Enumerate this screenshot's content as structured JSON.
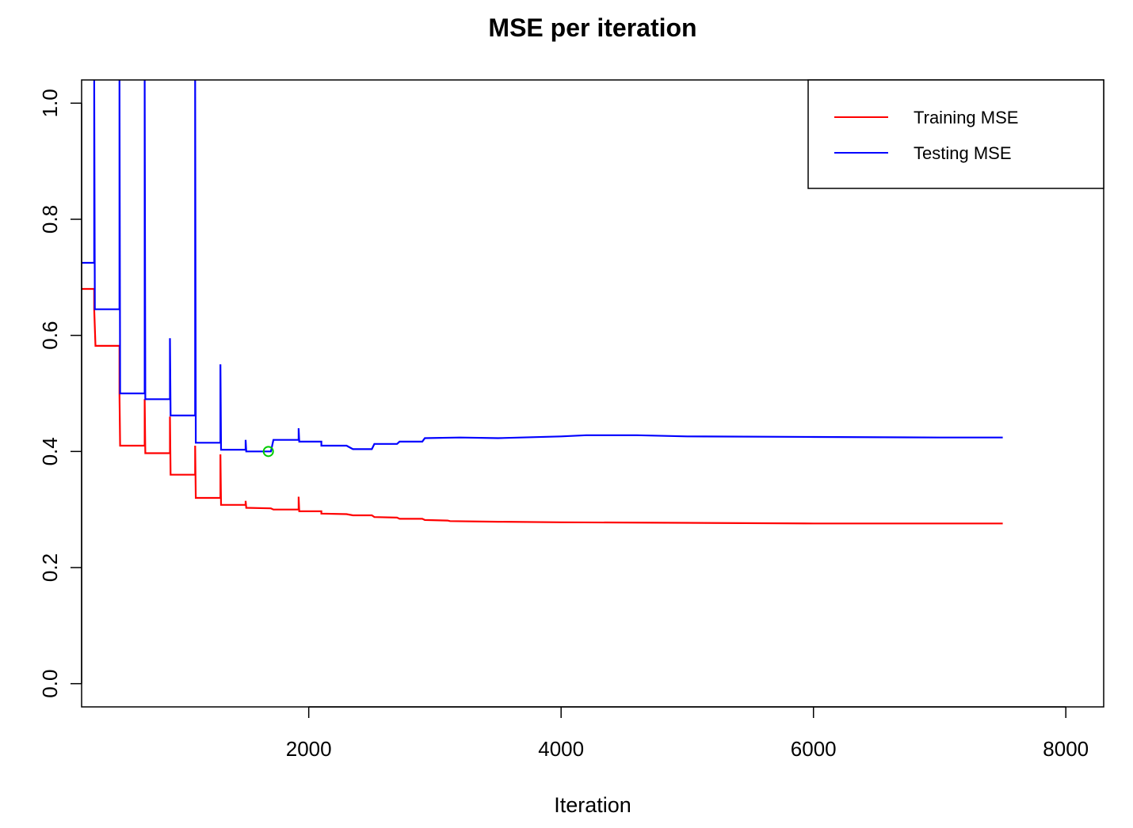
{
  "chart_data": {
    "type": "line",
    "title": "MSE per iteration",
    "xlabel": "Iteration",
    "ylabel": "",
    "xlim": [
      200,
      8300
    ],
    "ylim": [
      -0.04,
      1.04
    ],
    "x_ticks": [
      2000,
      4000,
      6000,
      8000
    ],
    "y_ticks": [
      0.0,
      0.2,
      0.4,
      0.6,
      0.8,
      1.0
    ],
    "x_tick_labels": [
      "2000",
      "4000",
      "6000",
      "8000"
    ],
    "y_tick_labels": [
      "0.0",
      "0.2",
      "0.4",
      "0.6",
      "0.8",
      "1.0"
    ],
    "grid": false,
    "legend_position": "top-right",
    "legend": [
      "Training MSE",
      "Testing MSE"
    ],
    "series": [
      {
        "name": "Training MSE",
        "color": "#ff0000",
        "points": [
          [
            200,
            0.68
          ],
          [
            300,
            0.68
          ],
          [
            300,
            0.645
          ],
          [
            310,
            0.582
          ],
          [
            500,
            0.582
          ],
          [
            500,
            0.5
          ],
          [
            505,
            0.41
          ],
          [
            700,
            0.41
          ],
          [
            700,
            0.49
          ],
          [
            705,
            0.397
          ],
          [
            900,
            0.397
          ],
          [
            900,
            0.46
          ],
          [
            905,
            0.36
          ],
          [
            1100,
            0.36
          ],
          [
            1100,
            0.41
          ],
          [
            1105,
            0.32
          ],
          [
            1300,
            0.32
          ],
          [
            1300,
            0.395
          ],
          [
            1305,
            0.308
          ],
          [
            1500,
            0.308
          ],
          [
            1500,
            0.315
          ],
          [
            1505,
            0.303
          ],
          [
            1700,
            0.302
          ],
          [
            1720,
            0.3
          ],
          [
            1920,
            0.3
          ],
          [
            1920,
            0.322
          ],
          [
            1925,
            0.297
          ],
          [
            2100,
            0.297
          ],
          [
            2100,
            0.293
          ],
          [
            2300,
            0.292
          ],
          [
            2350,
            0.29
          ],
          [
            2500,
            0.29
          ],
          [
            2520,
            0.287
          ],
          [
            2700,
            0.286
          ],
          [
            2720,
            0.284
          ],
          [
            2900,
            0.284
          ],
          [
            2920,
            0.282
          ],
          [
            3100,
            0.281
          ],
          [
            3120,
            0.28
          ],
          [
            3500,
            0.279
          ],
          [
            4000,
            0.278
          ],
          [
            5000,
            0.277
          ],
          [
            6000,
            0.276
          ],
          [
            7000,
            0.276
          ],
          [
            7500,
            0.276
          ]
        ]
      },
      {
        "name": "Testing MSE",
        "color": "#0000ff",
        "points": [
          [
            200,
            0.725
          ],
          [
            300,
            0.725
          ],
          [
            300,
            1.04
          ],
          [
            305,
            0.645
          ],
          [
            500,
            0.645
          ],
          [
            500,
            1.04
          ],
          [
            505,
            0.5
          ],
          [
            700,
            0.5
          ],
          [
            700,
            1.04
          ],
          [
            705,
            0.49
          ],
          [
            900,
            0.49
          ],
          [
            900,
            0.595
          ],
          [
            905,
            0.462
          ],
          [
            1100,
            0.462
          ],
          [
            1100,
            1.04
          ],
          [
            1105,
            0.415
          ],
          [
            1300,
            0.415
          ],
          [
            1300,
            0.55
          ],
          [
            1305,
            0.403
          ],
          [
            1500,
            0.403
          ],
          [
            1500,
            0.42
          ],
          [
            1505,
            0.4
          ],
          [
            1700,
            0.4
          ],
          [
            1720,
            0.42
          ],
          [
            1920,
            0.42
          ],
          [
            1920,
            0.44
          ],
          [
            1925,
            0.417
          ],
          [
            2100,
            0.417
          ],
          [
            2100,
            0.41
          ],
          [
            2300,
            0.41
          ],
          [
            2350,
            0.404
          ],
          [
            2500,
            0.404
          ],
          [
            2520,
            0.413
          ],
          [
            2700,
            0.413
          ],
          [
            2720,
            0.417
          ],
          [
            2900,
            0.417
          ],
          [
            2920,
            0.423
          ],
          [
            3200,
            0.424
          ],
          [
            3500,
            0.423
          ],
          [
            4000,
            0.426
          ],
          [
            4200,
            0.428
          ],
          [
            4600,
            0.428
          ],
          [
            5000,
            0.426
          ],
          [
            6000,
            0.425
          ],
          [
            7000,
            0.424
          ],
          [
            7500,
            0.424
          ]
        ]
      }
    ],
    "markers": [
      {
        "x": 1680,
        "y": 0.4,
        "color": "#00cc00",
        "shape": "open-circle"
      }
    ]
  }
}
